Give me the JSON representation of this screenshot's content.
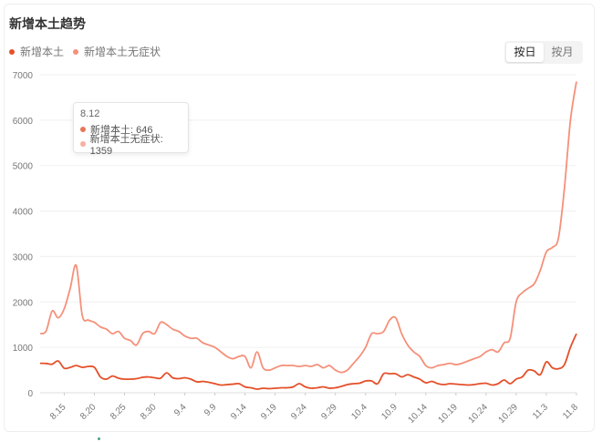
{
  "header": {
    "title": "新增本土趋势"
  },
  "legend": [
    {
      "label": "新增本土",
      "color": "#e4502a"
    },
    {
      "label": "新增本土无症状",
      "color": "#f5907a"
    }
  ],
  "toggle": {
    "day_label": "按日",
    "month_label": "按月",
    "active": "day"
  },
  "tooltip": {
    "date": "8.12",
    "row1": "新增本土: 646",
    "row2": "新增本土无症状: 1359"
  },
  "chart_data": {
    "type": "line",
    "title": "新增本土趋势",
    "xlabel": "",
    "ylabel": "",
    "ylim": [
      0,
      7000
    ],
    "yticks": [
      0,
      1000,
      2000,
      3000,
      4000,
      5000,
      6000,
      7000
    ],
    "grid": true,
    "legend_position": "top-left",
    "x": [
      "8.11",
      "8.12",
      "8.13",
      "8.14",
      "8.15",
      "8.16",
      "8.17",
      "8.18",
      "8.19",
      "8.20",
      "8.21",
      "8.22",
      "8.23",
      "8.24",
      "8.25",
      "8.26",
      "8.27",
      "8.28",
      "8.29",
      "8.30",
      "8.31",
      "9.1",
      "9.2",
      "9.3",
      "9.4",
      "9.5",
      "9.6",
      "9.7",
      "9.8",
      "9.9",
      "9.10",
      "9.11",
      "9.12",
      "9.13",
      "9.14",
      "9.15",
      "9.16",
      "9.17",
      "9.18",
      "9.19",
      "9.20",
      "9.21",
      "9.22",
      "9.23",
      "9.24",
      "9.25",
      "9.26",
      "9.27",
      "9.28",
      "9.29",
      "9.30",
      "10.1",
      "10.2",
      "10.3",
      "10.4",
      "10.5",
      "10.6",
      "10.7",
      "10.8",
      "10.9",
      "10.10",
      "10.11",
      "10.12",
      "10.13",
      "10.14",
      "10.15",
      "10.16",
      "10.17",
      "10.18",
      "10.19",
      "10.20",
      "10.21",
      "10.22",
      "10.23",
      "10.24",
      "10.25",
      "10.26",
      "10.27",
      "10.28",
      "10.29",
      "10.30",
      "10.31",
      "11.1",
      "11.2",
      "11.3",
      "11.4",
      "11.5",
      "11.6",
      "11.7",
      "11.8"
    ],
    "xticks": [
      "8.15",
      "8.20",
      "8.25",
      "8.30",
      "9.4",
      "9.9",
      "9.14",
      "9.19",
      "9.24",
      "9.29",
      "10.4",
      "10.9",
      "10.14",
      "10.19",
      "10.24",
      "10.29",
      "11.3",
      "11.8"
    ],
    "series": [
      {
        "name": "新增本土",
        "color": "#e4502a",
        "values": [
          650,
          646,
          630,
          700,
          540,
          560,
          600,
          560,
          580,
          560,
          350,
          300,
          370,
          320,
          300,
          300,
          310,
          340,
          350,
          330,
          320,
          440,
          330,
          310,
          330,
          300,
          240,
          250,
          230,
          200,
          170,
          180,
          190,
          200,
          130,
          110,
          80,
          100,
          90,
          100,
          110,
          110,
          130,
          200,
          130,
          100,
          110,
          130,
          100,
          110,
          140,
          180,
          200,
          210,
          260,
          260,
          200,
          420,
          420,
          420,
          350,
          400,
          350,
          300,
          220,
          250,
          200,
          180,
          200,
          190,
          180,
          170,
          180,
          200,
          210,
          170,
          200,
          280,
          200,
          300,
          350,
          500,
          480,
          400,
          680,
          550,
          530,
          620,
          1000,
          1300
        ]
      },
      {
        "name": "新增本土无症状",
        "color": "#f5907a",
        "values": [
          1300,
          1359,
          1800,
          1650,
          1850,
          2300,
          2800,
          1700,
          1600,
          1550,
          1450,
          1400,
          1300,
          1350,
          1200,
          1150,
          1050,
          1300,
          1350,
          1300,
          1550,
          1500,
          1400,
          1350,
          1250,
          1200,
          1200,
          1100,
          1050,
          1000,
          900,
          800,
          750,
          800,
          800,
          550,
          900,
          550,
          500,
          550,
          600,
          600,
          600,
          580,
          600,
          580,
          620,
          550,
          600,
          500,
          450,
          500,
          650,
          800,
          1000,
          1300,
          1300,
          1350,
          1600,
          1650,
          1300,
          1050,
          900,
          800,
          600,
          550,
          600,
          620,
          650,
          620,
          650,
          700,
          750,
          800,
          900,
          950,
          900,
          1100,
          1200,
          2000,
          2200,
          2300,
          2400,
          2700,
          3100,
          3200,
          3400,
          4500,
          6000,
          6850
        ]
      }
    ]
  }
}
